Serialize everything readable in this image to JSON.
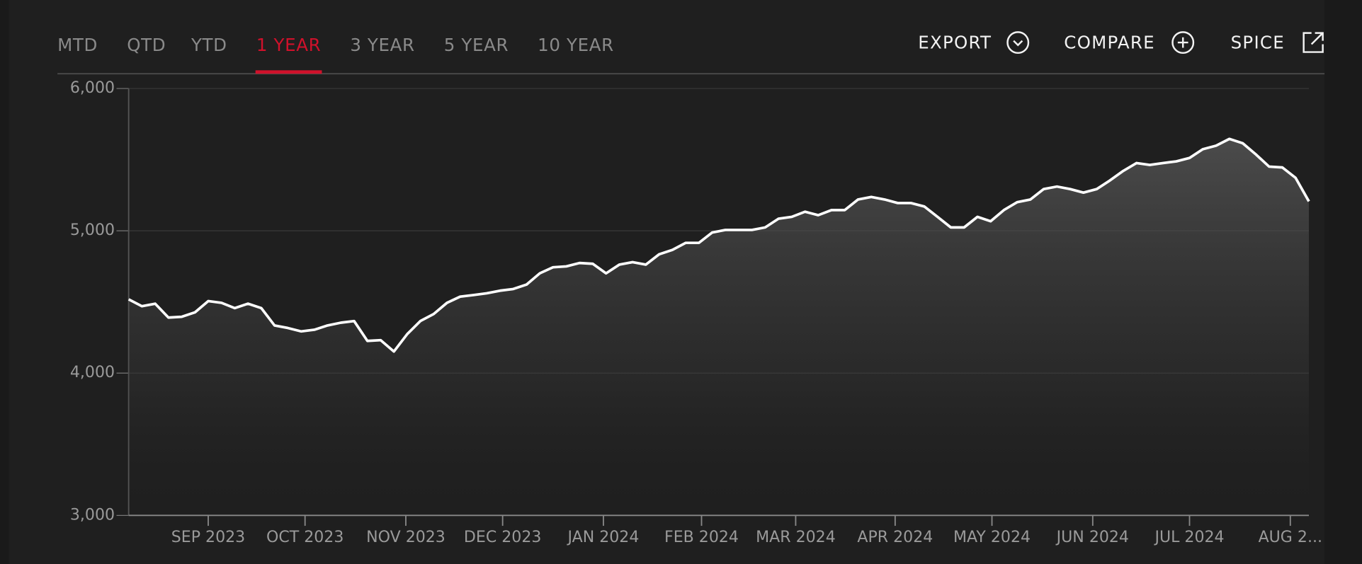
{
  "tabs": [
    "MTD",
    "QTD",
    "YTD",
    "1 YEAR",
    "3 YEAR",
    "5 YEAR",
    "10 YEAR"
  ],
  "active_tab_index": 3,
  "actions": [
    "EXPORT",
    "COMPARE",
    "SPICE"
  ],
  "chart_data": {
    "type": "line",
    "color": "#ffffff",
    "values": [
      4518,
      4470,
      4488,
      4390,
      4396,
      4427,
      4506,
      4494,
      4457,
      4488,
      4457,
      4335,
      4317,
      4293,
      4305,
      4335,
      4354,
      4366,
      4226,
      4232,
      4152,
      4274,
      4366,
      4415,
      4494,
      4537,
      4549,
      4561,
      4579,
      4591,
      4622,
      4701,
      4744,
      4750,
      4774,
      4768,
      4701,
      4762,
      4780,
      4762,
      4835,
      4866,
      4915,
      4915,
      4988,
      5006,
      5006,
      5006,
      5024,
      5085,
      5098,
      5134,
      5110,
      5146,
      5146,
      5220,
      5238,
      5220,
      5195,
      5195,
      5171,
      5098,
      5024,
      5024,
      5098,
      5067,
      5146,
      5201,
      5220,
      5293,
      5311,
      5293,
      5268,
      5293,
      5354,
      5421,
      5476,
      5463,
      5476,
      5488,
      5512,
      5573,
      5598,
      5646,
      5616,
      5537,
      5451,
      5445,
      5372,
      5207
    ],
    "xlim": [
      0,
      89
    ],
    "xticks": [
      {
        "value": 6.0,
        "label": "SEP 2023"
      },
      {
        "value": 13.3,
        "label": "OCT 2023"
      },
      {
        "value": 20.9,
        "label": "NOV 2023"
      },
      {
        "value": 28.2,
        "label": "DEC 2023"
      },
      {
        "value": 35.8,
        "label": "JAN 2024"
      },
      {
        "value": 43.2,
        "label": "FEB 2024"
      },
      {
        "value": 50.3,
        "label": "MAR 2024"
      },
      {
        "value": 57.8,
        "label": "APR 2024"
      },
      {
        "value": 65.1,
        "label": "MAY 2024"
      },
      {
        "value": 72.7,
        "label": "JUN 2024"
      },
      {
        "value": 80.0,
        "label": "JUL 2024"
      },
      {
        "value": 87.6,
        "label": "AUG 2..."
      }
    ],
    "ylim": [
      3000,
      6000
    ],
    "yticks": [
      {
        "value": 3000,
        "label": "3,000"
      },
      {
        "value": 4000,
        "label": "4,000"
      },
      {
        "value": 5000,
        "label": "5,000"
      },
      {
        "value": 6000,
        "label": "6,000"
      }
    ],
    "grid": true
  }
}
